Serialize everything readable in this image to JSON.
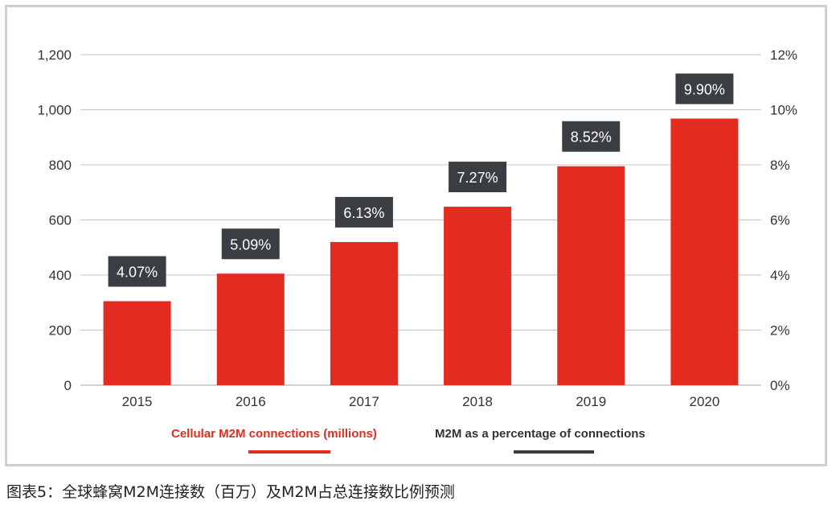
{
  "chart_data": {
    "type": "bar",
    "categories": [
      "2015",
      "2016",
      "2017",
      "2018",
      "2019",
      "2020"
    ],
    "series": [
      {
        "name": "Cellular M2M connections (millions)",
        "values": [
          305,
          405,
          520,
          648,
          795,
          968
        ],
        "axis": "left"
      },
      {
        "name": "M2M as a percentage of connections",
        "values": [
          4.07,
          5.09,
          6.13,
          7.27,
          8.52,
          9.9
        ],
        "axis": "right",
        "display": "data-labels"
      }
    ],
    "data_labels": [
      "4.07%",
      "5.09%",
      "6.13%",
      "7.27%",
      "8.52%",
      "9.90%"
    ],
    "y_left": {
      "lim": [
        0,
        1200
      ],
      "ticks": [
        0,
        200,
        400,
        600,
        800,
        1000,
        1200
      ],
      "tick_labels": [
        "0",
        "200",
        "400",
        "600",
        "800",
        "1,000",
        "1,200"
      ]
    },
    "y_right": {
      "lim": [
        0,
        12
      ],
      "ticks": [
        0,
        2,
        4,
        6,
        8,
        10,
        12
      ],
      "tick_labels": [
        "0%",
        "2%",
        "4%",
        "6%",
        "8%",
        "10%",
        "12%"
      ]
    },
    "grid": true,
    "legend_position": "bottom",
    "colors": {
      "bar": "#e32b1f",
      "label_box": "#3a3d42",
      "label_text": "#ffffff",
      "grid": "#c4c4c4",
      "axis_text": "#333333",
      "legend_line_2": "#3a3d42"
    }
  },
  "caption": "图表5：全球蜂窝M2M连接数（百万）及M2M占总连接数比例预测"
}
